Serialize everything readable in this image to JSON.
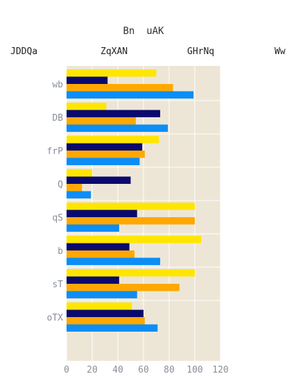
{
  "chart_data": {
    "type": "bar",
    "orientation": "horizontal",
    "title": "Bn  uAK",
    "categories": [
      "wb",
      "DB",
      "frP",
      "Q",
      "qS",
      "b",
      "sT",
      "oTX"
    ],
    "series": [
      {
        "name": "JDDQa",
        "color": "#ffe600",
        "values": [
          70,
          31,
          72,
          20,
          100,
          105,
          100,
          51
        ]
      },
      {
        "name": "ZqXAN",
        "color": "#0a0a6e",
        "values": [
          32,
          73,
          59,
          50,
          55,
          49,
          41,
          60
        ]
      },
      {
        "name": "GHrNq",
        "color": "#ffa800",
        "values": [
          83,
          54,
          61,
          12,
          100,
          53,
          88,
          61
        ]
      },
      {
        "name": "Ww",
        "color": "#0b8ef5",
        "values": [
          99,
          79,
          57,
          19,
          41,
          73,
          55,
          71
        ]
      }
    ],
    "xlim": [
      0,
      120
    ],
    "xticks": [
      0,
      20,
      40,
      60,
      80,
      100,
      120
    ],
    "grid": true,
    "legend_position": "top",
    "plot_background": "#ede6d6"
  }
}
